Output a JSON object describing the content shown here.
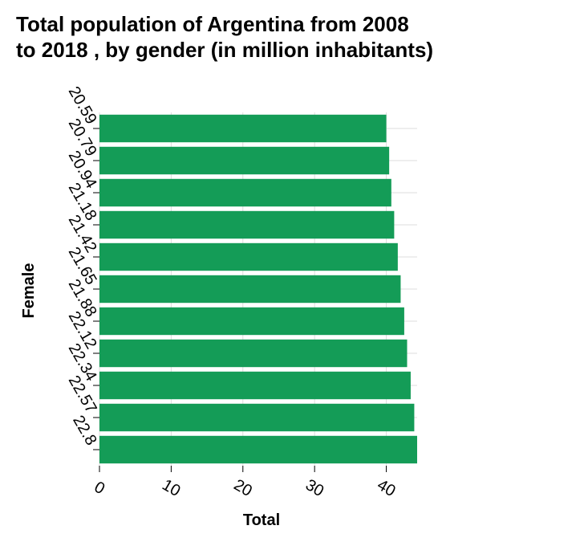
{
  "chart_data": {
    "type": "bar",
    "orientation": "horizontal",
    "title": "Total population of Argentina from 2008 to 2018 , by gender (in million inhabitants)",
    "title_lines": [
      "Total population of Argentina from 2008",
      "to 2018 , by gender (in million inhabitants)"
    ],
    "xlabel": "Total",
    "ylabel": "Female",
    "categories": [
      "20.59",
      "20.79",
      "20.94",
      "21.18",
      "21.42",
      "21.65",
      "21.88",
      "22.12",
      "22.34",
      "22.57",
      "22.8"
    ],
    "values": [
      40.0,
      40.4,
      40.7,
      41.1,
      41.6,
      42.0,
      42.5,
      42.9,
      43.4,
      43.9,
      44.3
    ],
    "xlim": [
      0,
      44.3
    ],
    "xticks": [
      0,
      10,
      20,
      30,
      40
    ],
    "grid": true,
    "bar_color": "#149c57",
    "grid_color": "#dddddd"
  }
}
